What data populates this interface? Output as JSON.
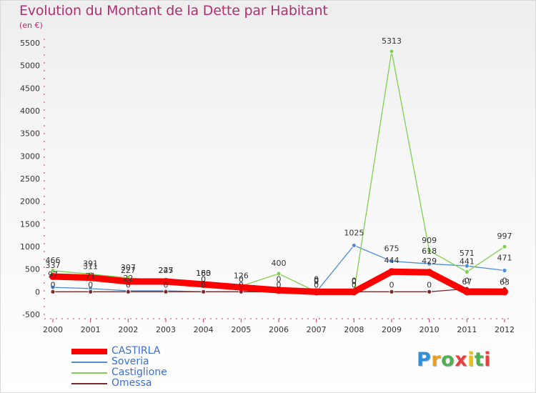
{
  "header": {
    "title": "Evolution du Montant de la Dette par Habitant",
    "unit": "(en €)"
  },
  "logo": {
    "letters": [
      "P",
      "r",
      "o",
      "x",
      "i",
      "t",
      "i"
    ],
    "colors": [
      "#2f8fd8",
      "#e8a020",
      "#50b050",
      "#e84040",
      "#e8c020",
      "#50b050",
      "#e84040"
    ]
  },
  "chart_data": {
    "type": "line",
    "title": "Evolution du Montant de la Dette par Habitant",
    "ylabel": "(en €)",
    "xlabel": "",
    "x": [
      "2000",
      "2001",
      "2002",
      "2003",
      "2004",
      "2005",
      "2006",
      "2007",
      "2008",
      "2009",
      "2010",
      "2011",
      "2012"
    ],
    "ylim": [
      -500,
      5500
    ],
    "yticks": [
      -500,
      0,
      500,
      1000,
      1500,
      2000,
      2500,
      3000,
      3500,
      4000,
      4500,
      5000,
      5500
    ],
    "grid": false,
    "legend_position": "bottom-left",
    "series": [
      {
        "name": "CASTIRLA",
        "color": "#ff0000",
        "values": [
          337,
          311,
          227,
          227,
          163,
          97,
          34,
          0,
          0,
          444,
          429,
          0,
          0
        ],
        "labels": [
          "337",
          "311",
          "227",
          "227",
          "163",
          "",
          "",
          "0",
          "0",
          "444",
          "429",
          "0",
          "0"
        ]
      },
      {
        "name": "Soveria",
        "color": "#4f8fd4",
        "values": [
          97,
          71,
          22,
          22,
          0,
          0,
          0,
          0,
          1025,
          675,
          618,
          571,
          471
        ],
        "labels": [
          "97",
          "71",
          "22",
          "",
          "0",
          "0",
          "0",
          "0",
          "1025",
          "675",
          "618",
          "571",
          "471"
        ]
      },
      {
        "name": "Castiglione",
        "color": "#80d050",
        "values": [
          466,
          391,
          307,
          245,
          180,
          126,
          400,
          0,
          0,
          5313,
          909,
          441,
          997
        ],
        "labels": [
          "466",
          "391",
          "307",
          "245",
          "180",
          "126",
          "400",
          "0",
          "0",
          "5313",
          "909",
          "441",
          "997"
        ]
      },
      {
        "name": "Omessa",
        "color": "#7a2a2a",
        "values": [
          0,
          0,
          0,
          0,
          0,
          0,
          0,
          0,
          0,
          0,
          0,
          67,
          63
        ],
        "labels": [
          "0",
          "0",
          "0",
          "0",
          "0",
          "0",
          "0",
          "0",
          "0",
          "0",
          "0",
          "67",
          "63"
        ]
      }
    ]
  }
}
